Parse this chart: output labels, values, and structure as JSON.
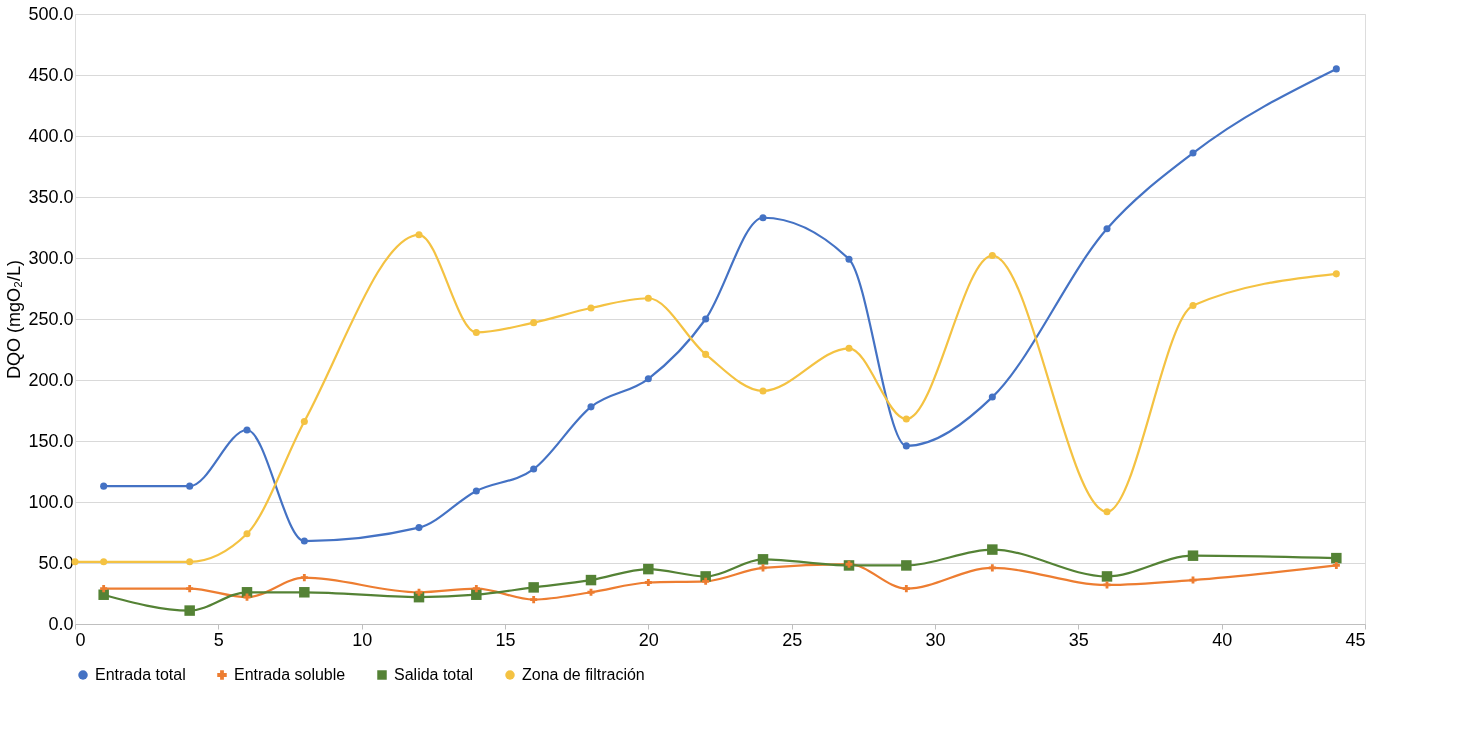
{
  "chart_data": {
    "type": "line",
    "ylabel": "DQO (mgO₂/L)",
    "xlim": [
      0,
      45
    ],
    "xticks": [
      0,
      5,
      10,
      15,
      20,
      25,
      30,
      35,
      40,
      45
    ],
    "ylim": [
      0,
      500
    ],
    "yticks": [
      {
        "value": 0,
        "label": "0.0"
      },
      {
        "value": 50,
        "label": "50.0"
      },
      {
        "value": 100,
        "label": "100.0"
      },
      {
        "value": 150,
        "label": "150.0"
      },
      {
        "value": 200,
        "label": "200.0"
      },
      {
        "value": 250,
        "label": "250.0"
      },
      {
        "value": 300,
        "label": "300.0"
      },
      {
        "value": 350,
        "label": "350.0"
      },
      {
        "value": 400,
        "label": "400.0"
      },
      {
        "value": 450,
        "label": "450.0"
      },
      {
        "value": 500,
        "label": "500.0"
      }
    ],
    "grid": "y",
    "legend": "bottom",
    "series": [
      {
        "name": "Entrada total",
        "color": "#4472c4",
        "marker": "circle",
        "x": [
          1,
          4,
          6,
          8,
          12,
          14,
          16,
          18,
          20,
          22,
          24,
          27,
          29,
          32,
          36,
          39,
          44
        ],
        "values": [
          113,
          113,
          159,
          68,
          79,
          109,
          127,
          178,
          201,
          250,
          333,
          299,
          146,
          186,
          324,
          386,
          455
        ]
      },
      {
        "name": "Entrada soluble",
        "color": "#ed7d31",
        "marker": "cross",
        "x": [
          1,
          4,
          6,
          8,
          12,
          14,
          16,
          18,
          20,
          22,
          24,
          27,
          29,
          32,
          36,
          39,
          44
        ],
        "values": [
          29,
          29,
          22,
          38,
          26,
          29,
          20,
          26,
          34,
          35,
          46,
          49,
          29,
          46,
          32,
          36,
          48
        ]
      },
      {
        "name": "Salida total",
        "color": "#548235",
        "marker": "square",
        "x": [
          1,
          4,
          6,
          8,
          12,
          14,
          16,
          18,
          20,
          22,
          24,
          27,
          29,
          32,
          36,
          39,
          44
        ],
        "values": [
          24,
          11,
          26,
          26,
          22,
          24,
          30,
          36,
          45,
          39,
          53,
          48,
          48,
          61,
          39,
          56,
          54
        ]
      },
      {
        "name": "Zona de filtración",
        "color": "#f4c242",
        "marker": "circle",
        "x": [
          0,
          1,
          4,
          6,
          8,
          12,
          14,
          16,
          18,
          20,
          22,
          24,
          27,
          29,
          32,
          36,
          39,
          44
        ],
        "values": [
          51,
          51,
          51,
          74,
          166,
          319,
          239,
          247,
          259,
          267,
          221,
          191,
          226,
          168,
          302,
          92,
          261,
          287
        ]
      }
    ]
  }
}
